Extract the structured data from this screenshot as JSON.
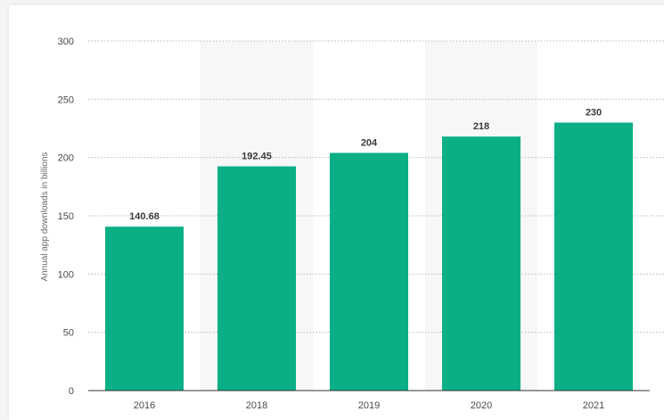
{
  "chart_data": {
    "type": "bar",
    "categories": [
      "2016",
      "2018",
      "2019",
      "2020",
      "2021"
    ],
    "values": [
      140.68,
      192.45,
      204,
      218,
      230
    ],
    "value_labels": [
      "140.68",
      "192.45",
      "204",
      "218",
      "230"
    ],
    "title": "",
    "xlabel": "",
    "ylabel": "Annual app downloads in billions",
    "ylim": [
      0,
      300
    ],
    "yticks": [
      "0",
      "50",
      "100",
      "150",
      "200",
      "250",
      "300"
    ],
    "grid": true,
    "bar_color": "#0aaf86",
    "alt_band_color": "#f7f7f7"
  }
}
